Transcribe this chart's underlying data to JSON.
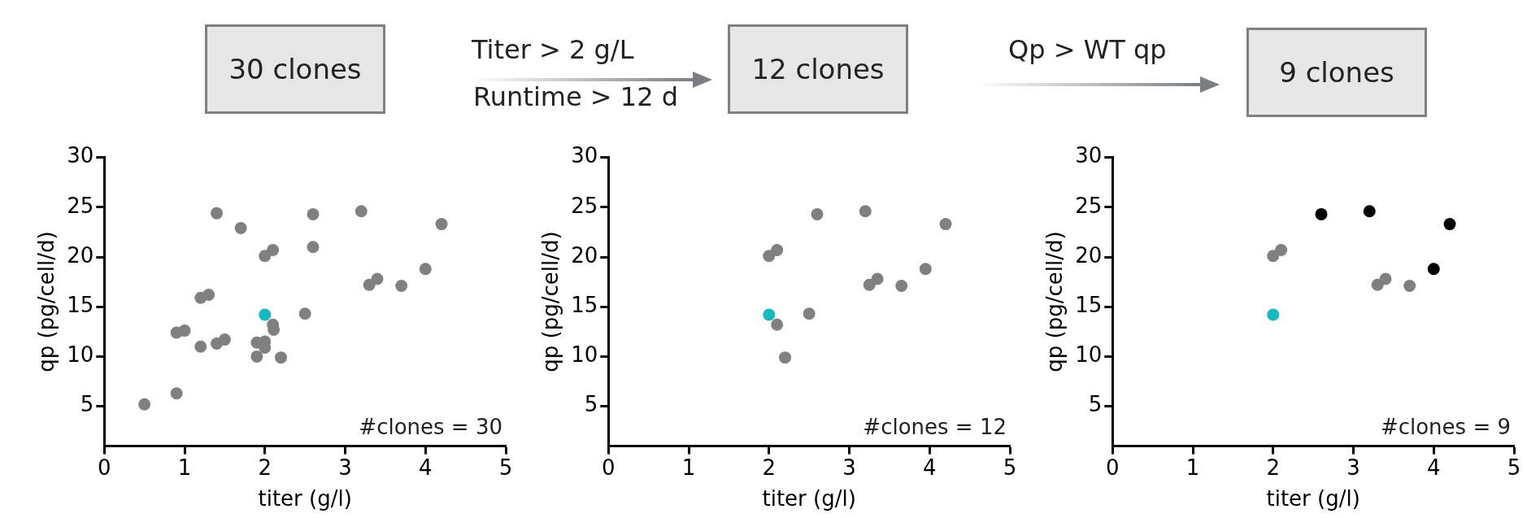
{
  "chart_data": [
    {
      "type": "other",
      "annotations": [
        "30 clones",
        "Titer > 2 g/L",
        "Runtime > 12 d",
        "12 clones",
        "Qp > WT qp",
        "9 clones"
      ]
    },
    {
      "type": "scatter",
      "xlabel": "titer (g/l)",
      "ylabel": "qp (pg/cell/d)",
      "xlim": [
        0,
        5
      ],
      "xticks": [
        0,
        1,
        2,
        3,
        4,
        5
      ],
      "ylim": [
        1,
        30
      ],
      "yticks": [
        5,
        10,
        15,
        20,
        25,
        30
      ],
      "grid": false,
      "marker": "circle",
      "annotations": [
        "#clones = 30"
      ],
      "series": [
        {
          "color": "#808080",
          "x": [
            1.4,
            1.7,
            2.6,
            3.2,
            4.2,
            2.6,
            2.0,
            2.1,
            4.0,
            3.3,
            3.4,
            3.7,
            1.2,
            1.3,
            2.5,
            2.11,
            2.1,
            0.9,
            1.0,
            1.2,
            1.4,
            1.5,
            1.9,
            2.0,
            2.0,
            1.9,
            2.2,
            0.9,
            0.5
          ],
          "values": [
            24.4,
            22.9,
            24.3,
            24.6,
            23.3,
            21.0,
            20.1,
            20.7,
            18.8,
            17.2,
            17.8,
            17.1,
            15.9,
            16.2,
            14.3,
            12.7,
            13.2,
            12.4,
            12.6,
            11.0,
            11.3,
            11.7,
            11.4,
            11.5,
            10.9,
            10.0,
            9.9,
            6.3,
            5.2
          ]
        },
        {
          "color": "#17b8c0",
          "x": [
            2.0
          ],
          "values": [
            14.2
          ]
        }
      ]
    },
    {
      "type": "scatter",
      "xlabel": "titer (g/l)",
      "ylabel": "qp (pg/cell/d)",
      "xlim": [
        0,
        5
      ],
      "xticks": [
        0,
        1,
        2,
        3,
        4,
        5
      ],
      "ylim": [
        1,
        30
      ],
      "yticks": [
        5,
        10,
        15,
        20,
        25,
        30
      ],
      "grid": false,
      "marker": "circle",
      "annotations": [
        "#clones = 12"
      ],
      "series": [
        {
          "color": "#808080",
          "x": [
            2.6,
            3.2,
            4.2,
            2.0,
            2.1,
            3.95,
            3.25,
            3.35,
            3.65,
            2.5,
            2.1,
            2.2
          ],
          "values": [
            24.3,
            24.6,
            23.3,
            20.1,
            20.7,
            18.8,
            17.2,
            17.8,
            17.1,
            14.3,
            13.2,
            9.9
          ]
        },
        {
          "color": "#17b8c0",
          "x": [
            2.0
          ],
          "values": [
            14.2
          ]
        }
      ]
    },
    {
      "type": "scatter",
      "xlabel": "titer (g/l)",
      "ylabel": "qp (pg/cell/d)",
      "xlim": [
        0,
        5
      ],
      "xticks": [
        0,
        1,
        2,
        3,
        4,
        5
      ],
      "ylim": [
        1,
        30
      ],
      "yticks": [
        5,
        10,
        15,
        20,
        25,
        30
      ],
      "grid": false,
      "marker": "circle",
      "annotations": [
        "#clones = 9"
      ],
      "series": [
        {
          "color": "#808080",
          "x": [
            2.0,
            2.1,
            3.3,
            3.4,
            3.7
          ],
          "values": [
            20.1,
            20.7,
            17.2,
            17.8,
            17.1
          ]
        },
        {
          "color": "#000000",
          "x": [
            2.6,
            3.2,
            4.2,
            4.0
          ],
          "values": [
            24.3,
            24.6,
            23.3,
            18.8
          ]
        },
        {
          "color": "#17b8c0",
          "x": [
            2.0
          ],
          "values": [
            14.2
          ]
        }
      ]
    }
  ]
}
